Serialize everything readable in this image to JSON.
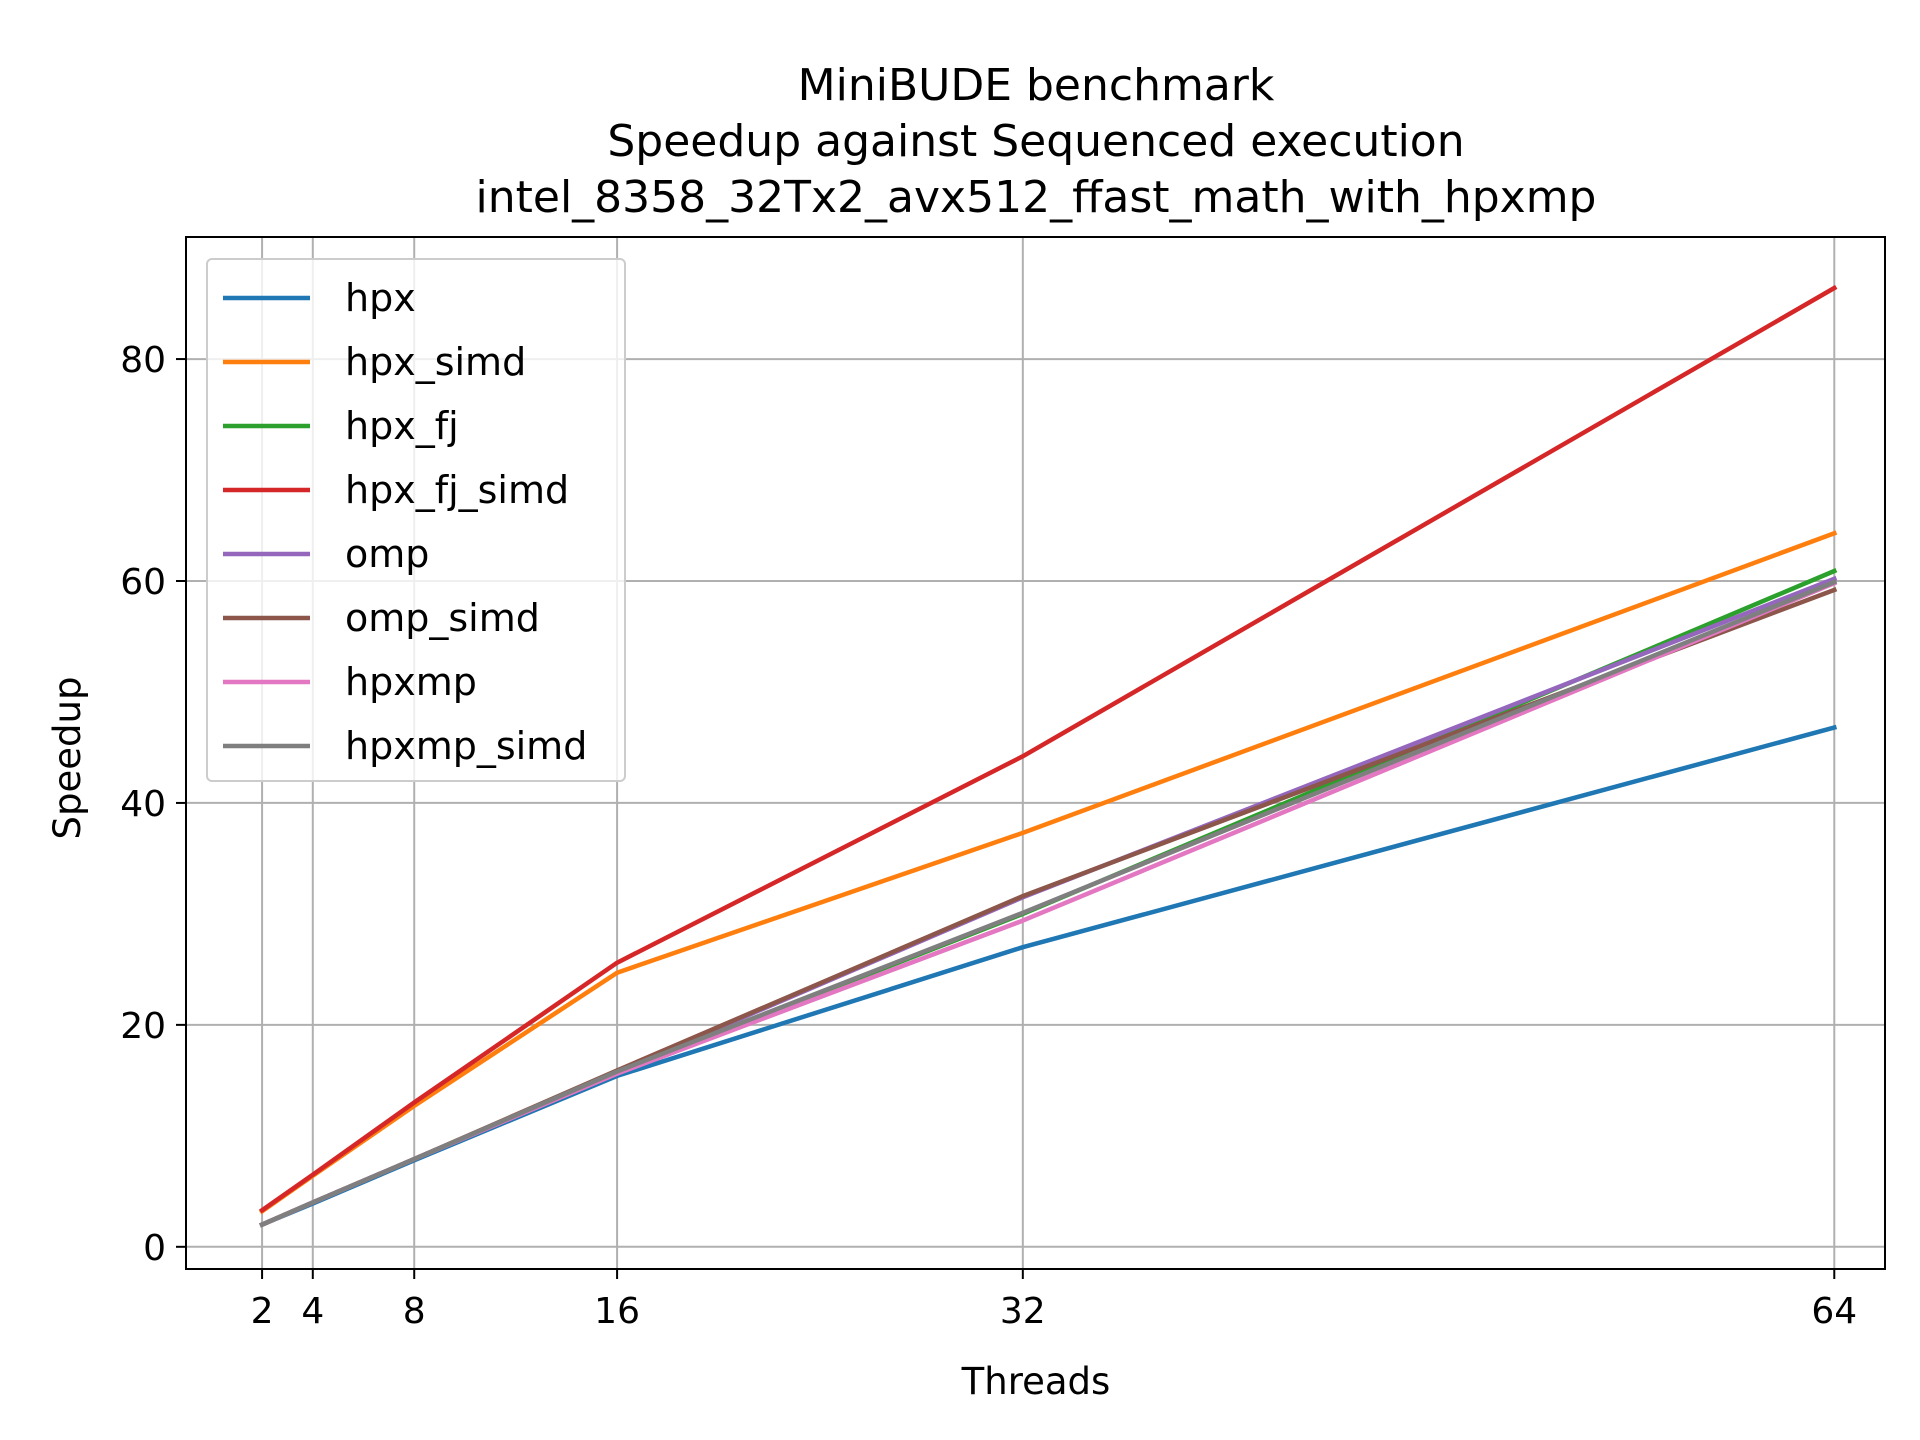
{
  "chart_data": {
    "type": "line",
    "title_lines": [
      "MiniBUDE benchmark",
      "Speedup against Sequenced execution",
      "intel_8358_32Tx2_avx512_ffast_math_with_hpxmp"
    ],
    "xlabel": "Threads",
    "ylabel": "Speedup",
    "x": [
      2,
      4,
      8,
      16,
      32,
      64
    ],
    "x_ticks": [
      2,
      4,
      8,
      16,
      32,
      64
    ],
    "x_tick_labels": [
      "2",
      "4",
      "8",
      "16",
      "32",
      "64"
    ],
    "y_ticks": [
      0,
      20,
      40,
      60,
      80
    ],
    "y_tick_labels": [
      "0",
      "20",
      "40",
      "60",
      "80"
    ],
    "xlim": [
      -1,
      66
    ],
    "ylim": [
      -2,
      91
    ],
    "grid": true,
    "legend_position": "top-left",
    "series": [
      {
        "name": "hpx",
        "color": "#1f77b4",
        "values": [
          2.0,
          3.9,
          7.8,
          15.4,
          27.0,
          46.8
        ]
      },
      {
        "name": "hpx_simd",
        "color": "#ff7f0e",
        "values": [
          3.2,
          6.4,
          12.7,
          24.7,
          37.3,
          64.3
        ]
      },
      {
        "name": "hpx_fj",
        "color": "#2ca02c",
        "values": [
          2.0,
          4.0,
          7.9,
          15.7,
          30.0,
          60.9
        ]
      },
      {
        "name": "hpx_fj_simd",
        "color": "#d62728",
        "values": [
          3.3,
          6.5,
          13.0,
          25.6,
          44.2,
          86.4
        ]
      },
      {
        "name": "omp",
        "color": "#9467bd",
        "values": [
          2.0,
          4.0,
          7.9,
          15.8,
          31.5,
          60.2
        ]
      },
      {
        "name": "omp_simd",
        "color": "#8c564b",
        "values": [
          2.0,
          4.0,
          7.9,
          15.9,
          31.6,
          59.2
        ]
      },
      {
        "name": "hpxmp",
        "color": "#e377c2",
        "values": [
          2.0,
          4.0,
          7.9,
          15.6,
          29.4,
          59.8
        ]
      },
      {
        "name": "hpxmp_simd",
        "color": "#7f7f7f",
        "values": [
          2.0,
          4.0,
          7.9,
          15.8,
          30.1,
          59.9
        ]
      }
    ]
  }
}
